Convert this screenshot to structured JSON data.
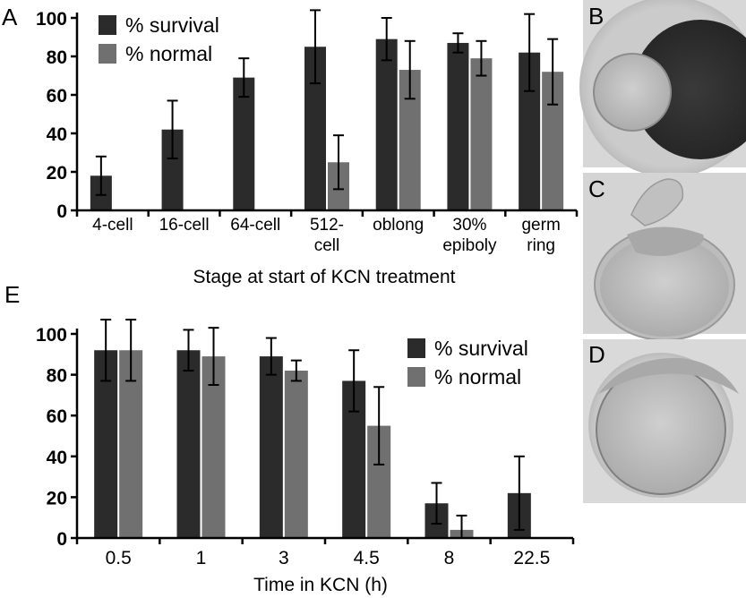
{
  "chart_data": [
    {
      "type": "bar",
      "panel_label": "A",
      "xlabel": "Stage at start of KCN treatment",
      "ylabel": "",
      "ylim": [
        0,
        100
      ],
      "yticks": [
        0,
        20,
        40,
        60,
        80,
        100
      ],
      "categories": [
        [
          "4-cell"
        ],
        [
          "16-cell"
        ],
        [
          "64-cell"
        ],
        [
          "512-",
          "cell"
        ],
        [
          "oblong"
        ],
        [
          "30%",
          "epiboly"
        ],
        [
          "germ",
          "ring"
        ]
      ],
      "legend_position": "top-left",
      "series": [
        {
          "name": "% survival",
          "color": "#2b2b2b",
          "values": [
            18,
            42,
            69,
            85,
            89,
            87,
            82
          ],
          "errors": [
            10,
            15,
            10,
            19,
            11,
            5,
            20
          ]
        },
        {
          "name": "% normal",
          "color": "#707070",
          "values": [
            null,
            null,
            null,
            25,
            73,
            79,
            72
          ],
          "errors": [
            null,
            null,
            null,
            14,
            15,
            9,
            17
          ]
        }
      ]
    },
    {
      "type": "bar",
      "panel_label": "E",
      "xlabel": "Time in KCN (h)",
      "ylabel": "",
      "ylim": [
        0,
        100
      ],
      "yticks": [
        0,
        20,
        40,
        60,
        80,
        100
      ],
      "categories": [
        [
          "0.5"
        ],
        [
          "1"
        ],
        [
          "3"
        ],
        [
          "4.5"
        ],
        [
          "8"
        ],
        [
          "22.5"
        ]
      ],
      "legend_position": "top-right",
      "series": [
        {
          "name": "% survival",
          "color": "#2b2b2b",
          "values": [
            92,
            92,
            89,
            77,
            17,
            22
          ],
          "errors": [
            15,
            10,
            9,
            15,
            10,
            18
          ]
        },
        {
          "name": "% normal",
          "color": "#707070",
          "values": [
            92,
            89,
            82,
            55,
            4,
            null
          ],
          "errors": [
            15,
            14,
            5,
            19,
            7,
            null
          ]
        }
      ]
    }
  ],
  "photos": [
    {
      "label": "B"
    },
    {
      "label": "C"
    },
    {
      "label": "D"
    }
  ]
}
